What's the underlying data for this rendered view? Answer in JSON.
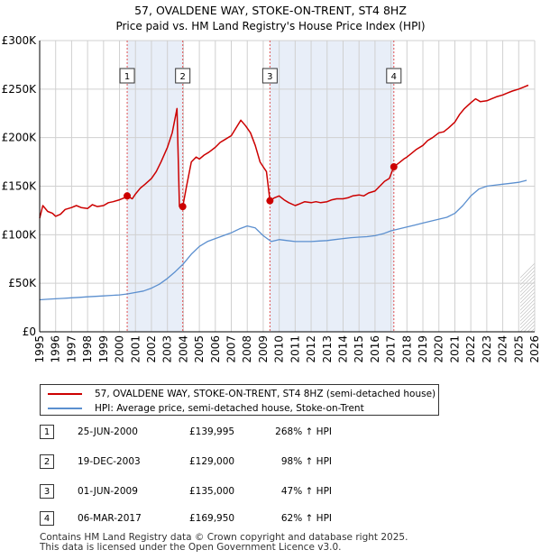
{
  "title_line1": "57, OVALDENE WAY, STOKE-ON-TRENT, ST4 8HZ",
  "title_line2": "Price paid vs. HM Land Registry's House Price Index (HPI)",
  "colors": {
    "property_line": "#cc0000",
    "hpi_line": "#5b8fcf",
    "shade": "#e8eef8",
    "marker_line": "#e05050",
    "grid": "#d0d0d0"
  },
  "chart_data": {
    "type": "line",
    "xlim": [
      1995,
      2026
    ],
    "ylim": [
      0,
      300000
    ],
    "y_ticks": [
      {
        "value": 0,
        "label": "£0"
      },
      {
        "value": 50000,
        "label": "£50K"
      },
      {
        "value": 100000,
        "label": "£100K"
      },
      {
        "value": 150000,
        "label": "£150K"
      },
      {
        "value": 200000,
        "label": "£200K"
      },
      {
        "value": 250000,
        "label": "£250K"
      },
      {
        "value": 300000,
        "label": "£300K"
      }
    ],
    "x_ticks": [
      "1995",
      "1996",
      "1997",
      "1998",
      "1999",
      "2000",
      "2001",
      "2002",
      "2003",
      "2004",
      "2005",
      "2006",
      "2007",
      "2008",
      "2009",
      "2010",
      "2011",
      "2012",
      "2013",
      "2014",
      "2015",
      "2016",
      "2017",
      "2018",
      "2019",
      "2020",
      "2021",
      "2022",
      "2023",
      "2024",
      "2025",
      "2026"
    ],
    "forecast_from": 2025.1,
    "series": [
      {
        "name": "57, OVALDENE WAY, STOKE-ON-TRENT, ST4 8HZ (semi-detached house)",
        "color": "#cc0000",
        "x": [
          1995.0,
          1995.2,
          1995.5,
          1995.8,
          1996.0,
          1996.3,
          1996.6,
          1997.0,
          1997.3,
          1997.6,
          1998.0,
          1998.3,
          1998.6,
          1999.0,
          1999.3,
          1999.6,
          2000.0,
          2000.3,
          2000.48,
          2000.8,
          2001.0,
          2001.3,
          2001.6,
          2002.0,
          2002.3,
          2002.6,
          2003.0,
          2003.3,
          2003.6,
          2003.75,
          2003.96,
          2004.2,
          2004.5,
          2004.8,
          2005.0,
          2005.3,
          2005.6,
          2006.0,
          2006.3,
          2006.6,
          2007.0,
          2007.3,
          2007.6,
          2007.9,
          2008.2,
          2008.5,
          2008.8,
          2009.0,
          2009.2,
          2009.42,
          2009.7,
          2010.0,
          2010.3,
          2010.6,
          2011.0,
          2011.3,
          2011.6,
          2012.0,
          2012.3,
          2012.6,
          2013.0,
          2013.3,
          2013.6,
          2014.0,
          2014.3,
          2014.6,
          2015.0,
          2015.3,
          2015.6,
          2016.0,
          2016.3,
          2016.6,
          2016.9,
          2017.18,
          2017.5,
          2017.8,
          2018.0,
          2018.3,
          2018.6,
          2019.0,
          2019.3,
          2019.6,
          2020.0,
          2020.3,
          2020.6,
          2021.0,
          2021.3,
          2021.6,
          2022.0,
          2022.3,
          2022.6,
          2023.0,
          2023.3,
          2023.6,
          2024.0,
          2024.3,
          2024.6,
          2025.0,
          2025.3,
          2025.6
        ],
        "values": [
          117000,
          130000,
          124000,
          122000,
          119000,
          121000,
          126000,
          128000,
          130000,
          128000,
          127000,
          131000,
          129000,
          130000,
          133000,
          134000,
          136000,
          138000,
          139995,
          137000,
          142000,
          148000,
          152000,
          158000,
          165000,
          175000,
          190000,
          205000,
          230000,
          129000,
          129000,
          150000,
          175000,
          180000,
          178000,
          182000,
          185000,
          190000,
          195000,
          198000,
          202000,
          210000,
          218000,
          212000,
          205000,
          192000,
          175000,
          170000,
          165000,
          135000,
          138000,
          140000,
          136000,
          133000,
          130000,
          132000,
          134000,
          133000,
          134000,
          133000,
          134000,
          136000,
          137000,
          137000,
          138000,
          140000,
          141000,
          140000,
          143000,
          145000,
          150000,
          155000,
          158000,
          169950,
          174000,
          178000,
          180000,
          184000,
          188000,
          192000,
          197000,
          200000,
          205000,
          206000,
          210000,
          216000,
          224000,
          230000,
          236000,
          240000,
          237000,
          238000,
          240000,
          242000,
          244000,
          246000,
          248000,
          250000,
          252000,
          254000
        ]
      },
      {
        "name": "HPI: Average price, semi-detached house, Stoke-on-Trent",
        "color": "#5b8fcf",
        "x": [
          1995.0,
          1995.5,
          1996.0,
          1996.5,
          1997.0,
          1997.5,
          1998.0,
          1998.5,
          1999.0,
          1999.5,
          2000.0,
          2000.5,
          2001.0,
          2001.5,
          2002.0,
          2002.5,
          2003.0,
          2003.5,
          2004.0,
          2004.5,
          2005.0,
          2005.5,
          2006.0,
          2006.5,
          2007.0,
          2007.5,
          2008.0,
          2008.5,
          2009.0,
          2009.5,
          2010.0,
          2010.5,
          2011.0,
          2011.5,
          2012.0,
          2012.5,
          2013.0,
          2013.5,
          2014.0,
          2014.5,
          2015.0,
          2015.5,
          2016.0,
          2016.5,
          2017.0,
          2017.5,
          2018.0,
          2018.5,
          2019.0,
          2019.5,
          2020.0,
          2020.5,
          2021.0,
          2021.5,
          2022.0,
          2022.5,
          2023.0,
          2023.5,
          2024.0,
          2024.5,
          2025.0,
          2025.5
        ],
        "values": [
          33000,
          33500,
          34000,
          34500,
          35000,
          35500,
          36000,
          36500,
          37000,
          37500,
          38000,
          39000,
          40500,
          42000,
          45000,
          49000,
          55000,
          62000,
          70000,
          80000,
          88000,
          93000,
          96000,
          99000,
          102000,
          106000,
          109000,
          107000,
          99000,
          93000,
          95000,
          94000,
          93000,
          93000,
          93000,
          93500,
          94000,
          95000,
          96000,
          97000,
          97500,
          98000,
          99000,
          101000,
          104000,
          106000,
          108000,
          110000,
          112000,
          114000,
          116000,
          118000,
          122000,
          130000,
          140000,
          147000,
          150000,
          151000,
          152000,
          153000,
          154000,
          156000
        ]
      }
    ],
    "sales": [
      {
        "n": "1",
        "x": 2000.48,
        "value": 139995
      },
      {
        "n": "2",
        "x": 2003.96,
        "value": 129000
      },
      {
        "n": "3",
        "x": 2009.42,
        "value": 135000
      },
      {
        "n": "4",
        "x": 2017.18,
        "value": 169950
      }
    ]
  },
  "legend": {
    "property": "57, OVALDENE WAY, STOKE-ON-TRENT, ST4 8HZ (semi-detached house)",
    "hpi": "HPI: Average price, semi-detached house, Stoke-on-Trent"
  },
  "sales_table": [
    {
      "n": "1",
      "date": "25-JUN-2000",
      "price": "£139,995",
      "hpi": "268% ↑ HPI"
    },
    {
      "n": "2",
      "date": "19-DEC-2003",
      "price": "£129,000",
      "hpi": "98% ↑ HPI"
    },
    {
      "n": "3",
      "date": "01-JUN-2009",
      "price": "£135,000",
      "hpi": "47% ↑ HPI"
    },
    {
      "n": "4",
      "date": "06-MAR-2017",
      "price": "£169,950",
      "hpi": "62% ↑ HPI"
    }
  ],
  "footer_line1": "Contains HM Land Registry data © Crown copyright and database right 2025.",
  "footer_line2": "This data is licensed under the Open Government Licence v3.0."
}
